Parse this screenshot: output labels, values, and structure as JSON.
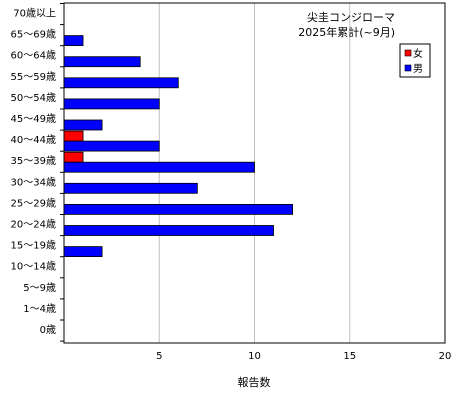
{
  "chart_data": {
    "type": "bar",
    "orientation": "horizontal",
    "title_line1": "尖圭コンジローマ",
    "title_line2": "2025年累計(~9月)",
    "xlabel": "報告数",
    "xlim": [
      0,
      20
    ],
    "xticks": [
      5,
      10,
      15,
      20
    ],
    "grid": true,
    "legend_position": "top-right",
    "categories": [
      "70歳以上",
      "65～69歳",
      "60～64歳",
      "55～59歳",
      "50～54歳",
      "45～49歳",
      "40～44歳",
      "35～39歳",
      "30～34歳",
      "25～29歳",
      "20～24歳",
      "15～19歳",
      "10～14歳",
      "5～9歳",
      "1～4歳",
      "0歳"
    ],
    "series": [
      {
        "name": "女",
        "color": "#ff0000",
        "values": [
          0,
          0,
          0,
          0,
          0,
          0,
          1,
          1,
          0,
          0,
          0,
          0,
          0,
          0,
          0,
          0
        ]
      },
      {
        "name": "男",
        "color": "#0000ff",
        "values": [
          0,
          1,
          4,
          6,
          5,
          2,
          5,
          10,
          7,
          12,
          11,
          2,
          0,
          0,
          0,
          0
        ]
      }
    ]
  }
}
